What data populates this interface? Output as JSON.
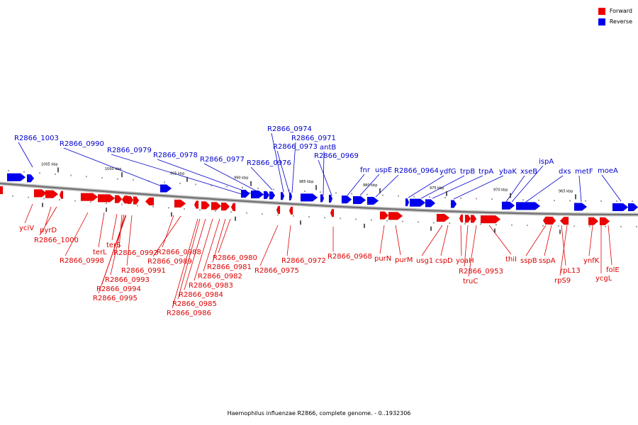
{
  "legend": {
    "forward_label": "Forward",
    "reverse_label": "Reverse",
    "forward_color": "#ee0000",
    "reverse_color": "#0000ee"
  },
  "caption": "Haemophilus influenzae R2866, complete genome. - 0..1932306",
  "ticks": [
    "1005 kbp",
    "1000 kbp",
    "995 kbp",
    "990 kbp",
    "985 kbp",
    "980 kbp",
    "975 kbp",
    "970 kbp",
    "965 kbp"
  ],
  "forward_genes": [
    "yciV",
    "pyrD",
    "R2866_1000",
    "R2866_0998",
    "terL",
    "terS",
    "R2866_0992",
    "R2866_0993",
    "R2866_0991",
    "R2866_0994",
    "R2866_0995",
    "R2866_0988",
    "R2866_0989",
    "R2866_0980",
    "R2866_0981",
    "R2866_0982",
    "R2866_0983",
    "R2866_0984",
    "R2866_0985",
    "R2866_0986",
    "R2866_0975",
    "R2866_0972",
    "R2866_0968",
    "purN",
    "purM",
    "usg1",
    "cspD",
    "yoaH",
    "R2866_0953",
    "truC",
    "thiI",
    "sspB",
    "sspA",
    "rpL13",
    "rpS9",
    "ynfK",
    "ycgL",
    "folE"
  ],
  "reverse_genes": [
    "R2866_1003",
    "R2866_0990",
    "R2866_0979",
    "R2866_0978",
    "R2866_0977",
    "R2866_0976",
    "R2866_0974",
    "R2866_0971",
    "R2866_0973",
    "antB",
    "R2866_0969",
    "fnr",
    "uspE",
    "R2866_0964",
    "ydfG",
    "trpB",
    "trpA",
    "ybaK",
    "xseB",
    "ispA",
    "dxs",
    "metF",
    "moeA"
  ]
}
